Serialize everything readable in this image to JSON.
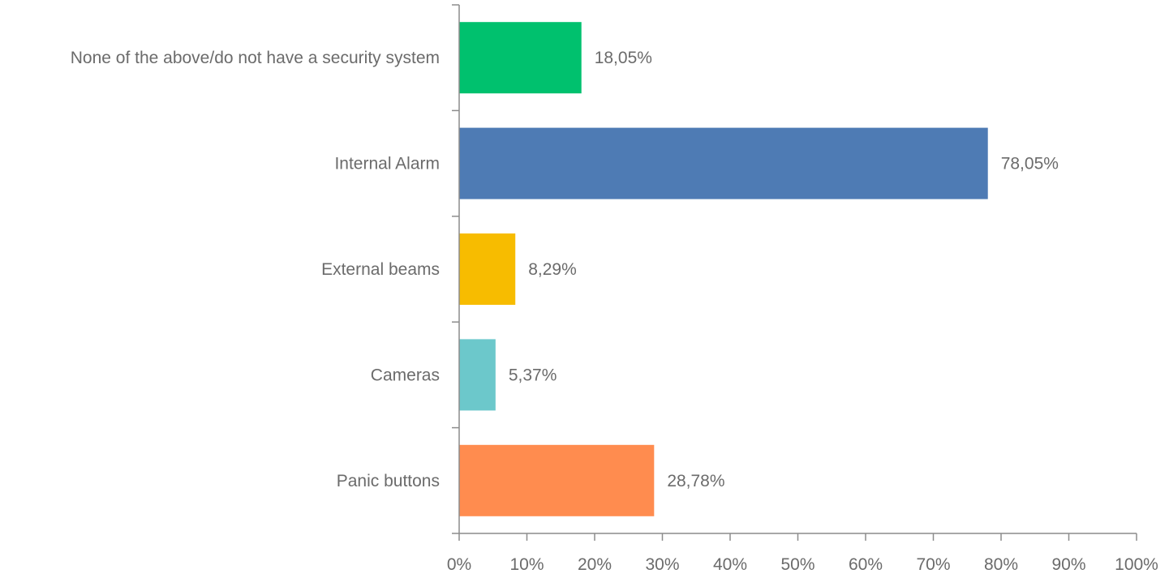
{
  "chart_data": {
    "type": "bar",
    "orientation": "horizontal",
    "categories": [
      "None of the above/do not have a security system",
      "Internal Alarm",
      "External beams",
      "Cameras",
      "Panic buttons"
    ],
    "values": [
      18.05,
      78.05,
      8.29,
      5.37,
      28.78
    ],
    "data_labels": [
      "18,05%",
      "78,05%",
      "8,29%",
      "5,37%",
      "28,78%"
    ],
    "colors": [
      "#00C16E",
      "#4E7BB4",
      "#F7BC00",
      "#6CC8CB",
      "#FF8C4F"
    ],
    "xlim": [
      0,
      100
    ],
    "x_ticks": [
      0,
      10,
      20,
      30,
      40,
      50,
      60,
      70,
      80,
      90,
      100
    ],
    "x_tick_labels": [
      "0%",
      "10%",
      "20%",
      "30%",
      "40%",
      "50%",
      "60%",
      "70%",
      "80%",
      "90%",
      "100%"
    ],
    "title": "",
    "xlabel": "",
    "ylabel": "",
    "grid": false,
    "legend": "none",
    "axis_color": "#8c8c8c",
    "text_color": "#6b6b6b"
  }
}
